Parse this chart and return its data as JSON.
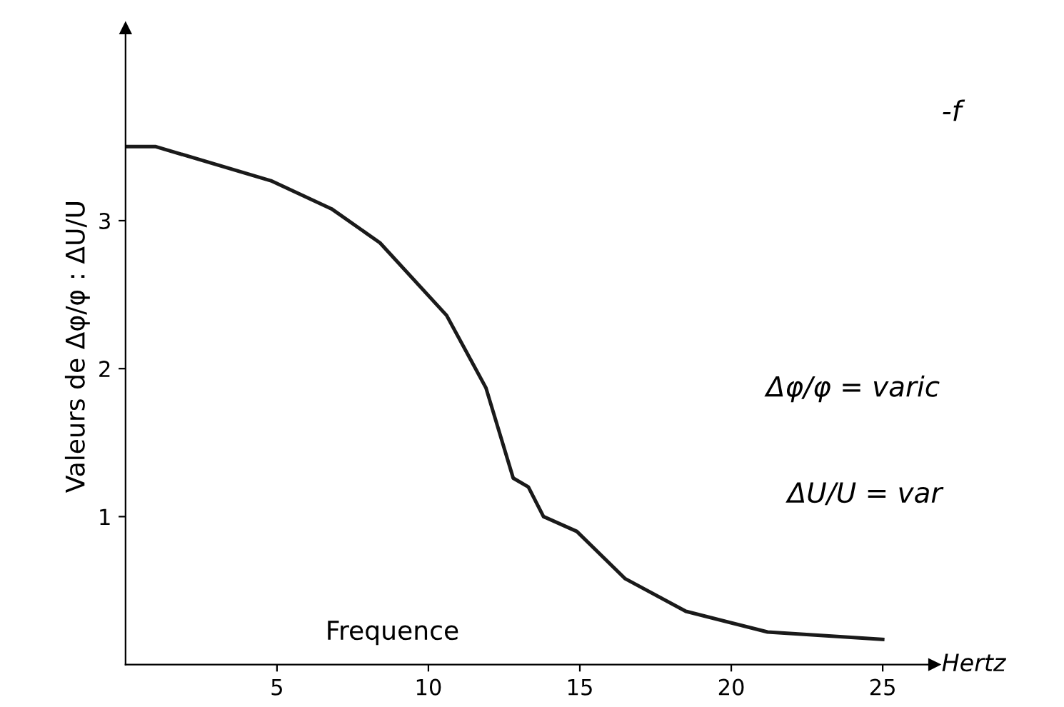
{
  "chart_data": {
    "type": "line",
    "xlabel": "Frequence",
    "ylabel": "Valeurs de Δφ/φ : ΔU/U",
    "annotations": [
      "Hertz",
      "-f",
      "Δφ/φ = varic",
      "ΔU/U = var"
    ],
    "series": [
      {
        "color": "#1a1a1a",
        "x": [
          0,
          1.0,
          4.8,
          6.8,
          8.4,
          10.6,
          11.9,
          12.8,
          13.3,
          13.8,
          14.9,
          16.5,
          18.5,
          21.2,
          25
        ],
        "values": [
          3.5,
          3.5,
          3.27,
          3.08,
          2.85,
          2.36,
          1.87,
          1.26,
          1.2,
          1.0,
          0.9,
          0.58,
          0.36,
          0.22,
          0.17
        ]
      }
    ],
    "xlim": [
      0,
      26.7
    ],
    "ylim": [
      0,
      4.3
    ],
    "xticks": [
      5,
      10,
      15,
      20,
      25
    ],
    "yticks": [
      1,
      2,
      3
    ],
    "grid": false,
    "legend": false,
    "marker": "none",
    "line_style": "solid"
  }
}
